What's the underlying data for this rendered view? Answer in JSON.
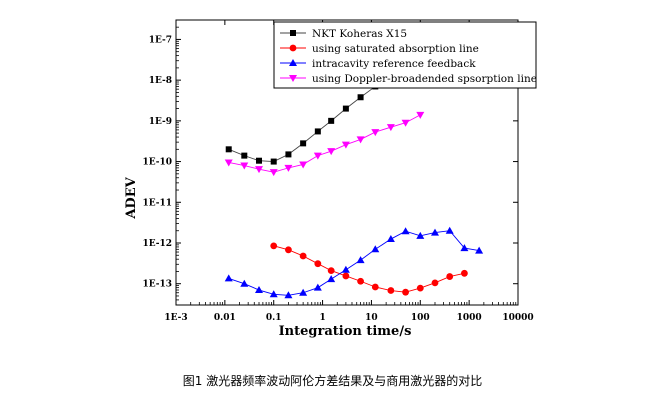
{
  "chart_data": {
    "type": "scatter",
    "title": "",
    "xlabel": "Integration time/s",
    "ylabel": "ADEV",
    "x_scale": "log",
    "y_scale": "log",
    "xlim": [
      0.001,
      10000
    ],
    "ylim": [
      3e-14,
      3e-07
    ],
    "x_ticks": [
      0.001,
      0.01,
      0.1,
      1,
      10,
      100,
      1000,
      10000
    ],
    "x_tick_labels": [
      "1E-3",
      "0.01",
      "0.1",
      "1",
      "10",
      "100",
      "1000",
      "10000"
    ],
    "y_ticks": [
      1e-13,
      1e-12,
      1e-11,
      1e-10,
      1e-09,
      1e-08,
      1e-07
    ],
    "y_tick_labels": [
      "1E-13",
      "1E-12",
      "1E-11",
      "1E-10",
      "1E-9",
      "1E-8",
      "1E-7"
    ],
    "grid": false,
    "legend_position": "top-right",
    "series": [
      {
        "name": "NKT Koheras X15",
        "color": "#000000",
        "marker": "square",
        "points": [
          [
            0.012,
            2e-10
          ],
          [
            0.025,
            1.4e-10
          ],
          [
            0.05,
            1.05e-10
          ],
          [
            0.1,
            1e-10
          ],
          [
            0.2,
            1.5e-10
          ],
          [
            0.4,
            2.8e-10
          ],
          [
            0.8,
            5.5e-10
          ],
          [
            1.5,
            1e-09
          ],
          [
            3,
            2e-09
          ],
          [
            6,
            3.8e-09
          ],
          [
            12,
            7e-09
          ],
          [
            25,
            1.3e-08
          ],
          [
            50,
            2.3e-08
          ]
        ]
      },
      {
        "name": "using  saturated absorption line",
        "color": "#ff0000",
        "marker": "circle",
        "points": [
          [
            0.1,
            8.5e-13
          ],
          [
            0.2,
            6.8e-13
          ],
          [
            0.4,
            4.8e-13
          ],
          [
            0.8,
            3.1e-13
          ],
          [
            1.5,
            2.1e-13
          ],
          [
            3,
            1.55e-13
          ],
          [
            6,
            1.15e-13
          ],
          [
            12,
            8.3e-14
          ],
          [
            25,
            6.8e-14
          ],
          [
            50,
            6.2e-14
          ],
          [
            100,
            7.8e-14
          ],
          [
            200,
            1.05e-13
          ],
          [
            400,
            1.5e-13
          ],
          [
            800,
            1.8e-13
          ]
        ]
      },
      {
        "name": "intracavity reference feedback",
        "color": "#0000ff",
        "marker": "triangle-up",
        "points": [
          [
            0.012,
            1.35e-13
          ],
          [
            0.025,
            1e-13
          ],
          [
            0.05,
            7e-14
          ],
          [
            0.1,
            5.5e-14
          ],
          [
            0.2,
            5.2e-14
          ],
          [
            0.4,
            6e-14
          ],
          [
            0.8,
            8e-14
          ],
          [
            1.5,
            1.3e-13
          ],
          [
            3,
            2.2e-13
          ],
          [
            6,
            3.8e-13
          ],
          [
            12,
            7e-13
          ],
          [
            25,
            1.25e-12
          ],
          [
            50,
            1.95e-12
          ],
          [
            100,
            1.5e-12
          ],
          [
            200,
            1.8e-12
          ],
          [
            400,
            2e-12
          ],
          [
            800,
            7.5e-13
          ],
          [
            1600,
            6.5e-13
          ]
        ]
      },
      {
        "name": "using Doppler-broadended spsorption line",
        "color": "#ff00ff",
        "marker": "triangle-down",
        "points": [
          [
            0.012,
            9.5e-11
          ],
          [
            0.025,
            8e-11
          ],
          [
            0.05,
            6.5e-11
          ],
          [
            0.1,
            5.5e-11
          ],
          [
            0.2,
            7e-11
          ],
          [
            0.4,
            8.5e-11
          ],
          [
            0.8,
            1.4e-10
          ],
          [
            1.5,
            1.8e-10
          ],
          [
            3,
            2.6e-10
          ],
          [
            6,
            3.5e-10
          ],
          [
            12,
            5.3e-10
          ],
          [
            25,
            7e-10
          ],
          [
            50,
            9e-10
          ],
          [
            100,
            1.4e-09
          ]
        ]
      }
    ]
  },
  "caption": "图1  激光器频率波动阿伦方差结果及与商用激光器的对比"
}
